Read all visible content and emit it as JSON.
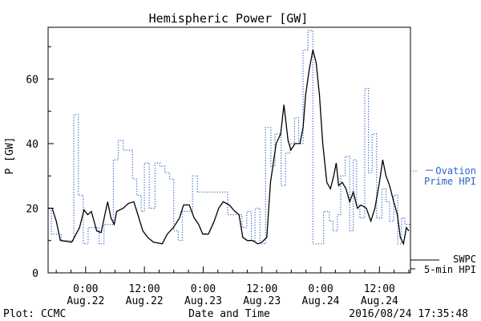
{
  "chart_data": {
    "type": "line",
    "title": "Hemispheric Power [GW]",
    "xlabel": "Date and Time",
    "ylabel": "P [GW]",
    "ylim": [
      0,
      76
    ],
    "y_ticks": [
      0,
      20,
      40,
      60
    ],
    "x_range": [
      "2016-08-21 16:20",
      "2016-08-24 18:20"
    ],
    "x_ticks": [
      {
        "at": "2016-08-22 00:00",
        "time": "0:00",
        "date": "Aug.22"
      },
      {
        "at": "2016-08-22 12:00",
        "time": "12:00",
        "date": "Aug.22"
      },
      {
        "at": "2016-08-23 00:00",
        "time": "0:00",
        "date": "Aug.23"
      },
      {
        "at": "2016-08-23 12:00",
        "time": "12:00",
        "date": "Aug.23"
      },
      {
        "at": "2016-08-24 00:00",
        "time": "0:00",
        "date": "Aug.24"
      },
      {
        "at": "2016-08-24 12:00",
        "time": "12:00",
        "date": "Aug.24"
      }
    ],
    "grid": false,
    "legend_position": "right",
    "series": [
      {
        "name": "SWPC 5-min HPI",
        "legend_line1": "SWPC",
        "legend_line2": "5-min HPI",
        "color": "#000000",
        "style": "solid",
        "points": [
          [
            "2016-08-21 16:25",
            20
          ],
          [
            "2016-08-21 17:10",
            20
          ],
          [
            "2016-08-21 18:00",
            16
          ],
          [
            "2016-08-21 18:50",
            10
          ],
          [
            "2016-08-21 21:10",
            9.5
          ],
          [
            "2016-08-21 22:45",
            14
          ],
          [
            "2016-08-21 23:40",
            19.5
          ],
          [
            "2016-08-22 00:25",
            18
          ],
          [
            "2016-08-22 01:10",
            19
          ],
          [
            "2016-08-22 02:15",
            13
          ],
          [
            "2016-08-22 03:10",
            12.5
          ],
          [
            "2016-08-22 03:55",
            18
          ],
          [
            "2016-08-22 04:30",
            22
          ],
          [
            "2016-08-22 05:10",
            17
          ],
          [
            "2016-08-22 05:50",
            15
          ],
          [
            "2016-08-22 06:20",
            19
          ],
          [
            "2016-08-22 07:40",
            20
          ],
          [
            "2016-08-22 08:45",
            21.5
          ],
          [
            "2016-08-22 09:50",
            22
          ],
          [
            "2016-08-22 10:40",
            18
          ],
          [
            "2016-08-22 11:40",
            13
          ],
          [
            "2016-08-22 12:40",
            11
          ],
          [
            "2016-08-22 13:50",
            9.5
          ],
          [
            "2016-08-22 15:40",
            9
          ],
          [
            "2016-08-22 16:40",
            12
          ],
          [
            "2016-08-22 17:55",
            14
          ],
          [
            "2016-08-22 19:10",
            17
          ],
          [
            "2016-08-22 20:00",
            21
          ],
          [
            "2016-08-22 21:10",
            21
          ],
          [
            "2016-08-22 22:10",
            17
          ],
          [
            "2016-08-22 23:05",
            15
          ],
          [
            "2016-08-22 23:55",
            12
          ],
          [
            "2016-08-23 01:05",
            12
          ],
          [
            "2016-08-23 02:15",
            16
          ],
          [
            "2016-08-23 03:10",
            20
          ],
          [
            "2016-08-23 04:05",
            22
          ],
          [
            "2016-08-23 05:20",
            21
          ],
          [
            "2016-08-23 06:30",
            19
          ],
          [
            "2016-08-23 07:20",
            18
          ],
          [
            "2016-08-23 08:05",
            11
          ],
          [
            "2016-08-23 09:00",
            10
          ],
          [
            "2016-08-23 10:05",
            10
          ],
          [
            "2016-08-23 11:10",
            9
          ],
          [
            "2016-08-23 12:00",
            9.5
          ],
          [
            "2016-08-23 13:00",
            11
          ],
          [
            "2016-08-23 13:45",
            28
          ],
          [
            "2016-08-23 14:55",
            40
          ],
          [
            "2016-08-23 15:50",
            43
          ],
          [
            "2016-08-23 16:30",
            52
          ],
          [
            "2016-08-23 17:20",
            41
          ],
          [
            "2016-08-23 17:55",
            38
          ],
          [
            "2016-08-23 18:45",
            40
          ],
          [
            "2016-08-23 19:45",
            40
          ],
          [
            "2016-08-23 20:25",
            45
          ],
          [
            "2016-08-23 20:55",
            55
          ],
          [
            "2016-08-23 21:40",
            63
          ],
          [
            "2016-08-23 22:25",
            69
          ],
          [
            "2016-08-23 23:05",
            65
          ],
          [
            "2016-08-23 23:45",
            55
          ],
          [
            "2016-08-24 00:25",
            40
          ],
          [
            "2016-08-24 01:15",
            28
          ],
          [
            "2016-08-24 02:00",
            26
          ],
          [
            "2016-08-24 02:40",
            30
          ],
          [
            "2016-08-24 03:10",
            34
          ],
          [
            "2016-08-24 03:40",
            27
          ],
          [
            "2016-08-24 04:25",
            28
          ],
          [
            "2016-08-24 05:10",
            26
          ],
          [
            "2016-08-24 05:55",
            22
          ],
          [
            "2016-08-24 06:40",
            25
          ],
          [
            "2016-08-24 07:30",
            20
          ],
          [
            "2016-08-24 08:15",
            21
          ],
          [
            "2016-08-24 09:20",
            20
          ],
          [
            "2016-08-24 10:15",
            16
          ],
          [
            "2016-08-24 11:05",
            20
          ],
          [
            "2016-08-24 12:00",
            28
          ],
          [
            "2016-08-24 12:40",
            35
          ],
          [
            "2016-08-24 13:20",
            30
          ],
          [
            "2016-08-24 14:05",
            27
          ],
          [
            "2016-08-24 14:55",
            22
          ],
          [
            "2016-08-24 15:40",
            18
          ],
          [
            "2016-08-24 16:15",
            11
          ],
          [
            "2016-08-24 16:55",
            9
          ],
          [
            "2016-08-24 17:30",
            14
          ],
          [
            "2016-08-24 18:00",
            13
          ]
        ]
      },
      {
        "name": "Ovation Prime HPI",
        "legend_line1": "Ovation",
        "legend_line2": "Prime HPI",
        "color": "#2a62c9",
        "style": "dotted-step",
        "points": [
          [
            "2016-08-21 16:25",
            20
          ],
          [
            "2016-08-21 17:00",
            12
          ],
          [
            "2016-08-21 19:00",
            10
          ],
          [
            "2016-08-21 21:35",
            49
          ],
          [
            "2016-08-21 22:30",
            24
          ],
          [
            "2016-08-21 23:30",
            9
          ],
          [
            "2016-08-22 00:30",
            14
          ],
          [
            "2016-08-22 02:45",
            9
          ],
          [
            "2016-08-22 03:45",
            15
          ],
          [
            "2016-08-22 05:40",
            35
          ],
          [
            "2016-08-22 06:40",
            41
          ],
          [
            "2016-08-22 07:40",
            38
          ],
          [
            "2016-08-22 09:35",
            29
          ],
          [
            "2016-08-22 10:25",
            24
          ],
          [
            "2016-08-22 11:20",
            19
          ],
          [
            "2016-08-22 12:00",
            34
          ],
          [
            "2016-08-22 13:00",
            20
          ],
          [
            "2016-08-22 14:10",
            34
          ],
          [
            "2016-08-22 15:10",
            33
          ],
          [
            "2016-08-22 16:10",
            31
          ],
          [
            "2016-08-22 17:10",
            29
          ],
          [
            "2016-08-22 18:00",
            13
          ],
          [
            "2016-08-22 18:55",
            10
          ],
          [
            "2016-08-22 19:45",
            19
          ],
          [
            "2016-08-22 21:50",
            30
          ],
          [
            "2016-08-22 22:50",
            25
          ],
          [
            "2016-08-23 00:50",
            25
          ],
          [
            "2016-08-23 05:00",
            18
          ],
          [
            "2016-08-23 07:55",
            14
          ],
          [
            "2016-08-23 08:55",
            19
          ],
          [
            "2016-08-23 09:50",
            10
          ],
          [
            "2016-08-23 10:35",
            20
          ],
          [
            "2016-08-23 11:35",
            9
          ],
          [
            "2016-08-23 12:45",
            45
          ],
          [
            "2016-08-23 13:50",
            33
          ],
          [
            "2016-08-23 14:40",
            43
          ],
          [
            "2016-08-23 15:55",
            27
          ],
          [
            "2016-08-23 16:50",
            37
          ],
          [
            "2016-08-23 17:45",
            40
          ],
          [
            "2016-08-23 18:40",
            48
          ],
          [
            "2016-08-23 19:30",
            40
          ],
          [
            "2016-08-23 20:25",
            69
          ],
          [
            "2016-08-23 21:25",
            75
          ],
          [
            "2016-08-23 22:25",
            9
          ],
          [
            "2016-08-24 00:35",
            19
          ],
          [
            "2016-08-24 01:45",
            16
          ],
          [
            "2016-08-24 02:30",
            13
          ],
          [
            "2016-08-24 03:25",
            18
          ],
          [
            "2016-08-24 04:05",
            30
          ],
          [
            "2016-08-24 05:00",
            36
          ],
          [
            "2016-08-24 05:55",
            13
          ],
          [
            "2016-08-24 06:40",
            35
          ],
          [
            "2016-08-24 07:20",
            21
          ],
          [
            "2016-08-24 08:00",
            17
          ],
          [
            "2016-08-24 09:00",
            57
          ],
          [
            "2016-08-24 09:45",
            31
          ],
          [
            "2016-08-24 10:30",
            43
          ],
          [
            "2016-08-24 11:25",
            17
          ],
          [
            "2016-08-24 12:30",
            26
          ],
          [
            "2016-08-24 13:20",
            22
          ],
          [
            "2016-08-24 14:05",
            16
          ],
          [
            "2016-08-24 14:55",
            24
          ],
          [
            "2016-08-24 15:45",
            9
          ],
          [
            "2016-08-24 16:30",
            17
          ],
          [
            "2016-08-24 17:10",
            15
          ]
        ]
      }
    ]
  },
  "footer": {
    "plot_label": "Plot: CCMC",
    "timestamp": "2016/08/24 17:35:48"
  }
}
